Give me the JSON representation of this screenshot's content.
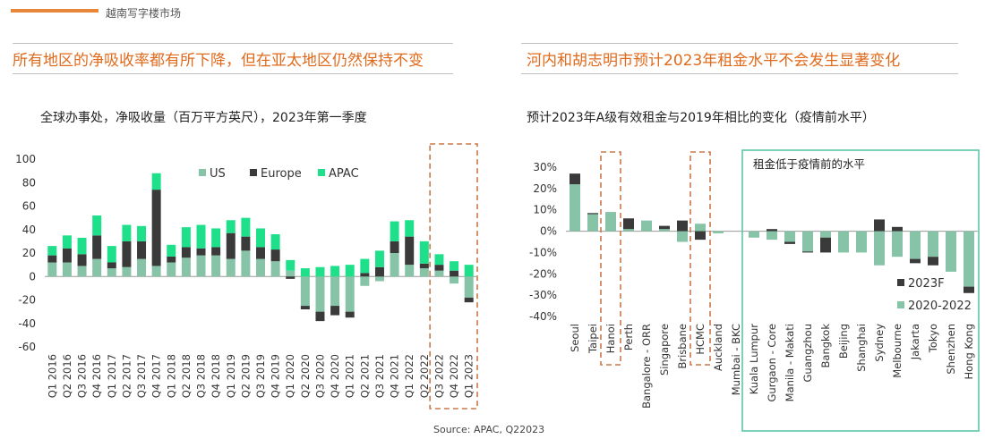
{
  "header": {
    "brand": "越南写字楼市场"
  },
  "colors": {
    "us": "#86C3A7",
    "europe": "#3A3A3A",
    "apac": "#1FE08A",
    "rent_2020": "#86C3A7",
    "rent_2023": "#3A3A3A",
    "title": "#E06A1C",
    "highlight": "#C9784A",
    "box": "#5BC6A8"
  },
  "source": "Source: APAC, Q22023",
  "chart_data": [
    {
      "type": "bar",
      "stacked": true,
      "panel_title": "所有地区的净吸收率都有所下降，但在亚太地区仍然保持不变",
      "title": "全球办事处，净吸收量（百万平方英尺），2023年第一季度",
      "categories": [
        "Q1 2016",
        "Q2 2016",
        "Q3 2016",
        "Q4 2016",
        "Q1 2017",
        "Q2 2017",
        "Q3 2017",
        "Q4 2017",
        "Q1 2018",
        "Q2 2018",
        "Q3 2018",
        "Q4 2018",
        "Q1 2019",
        "Q2 2019",
        "Q3 2019",
        "Q4 2019",
        "Q1 2020",
        "Q2 2020",
        "Q3 2020",
        "Q4 2020",
        "Q1 2021",
        "Q2 2021",
        "Q3 2021",
        "Q4 2021",
        "Q1 2022",
        "Q2 2022",
        "Q3 2022",
        "Q4 2022",
        "Q1 2023"
      ],
      "series": [
        {
          "name": "US",
          "values": [
            12,
            12,
            9,
            15,
            7,
            8,
            15,
            9,
            12,
            16,
            18,
            18,
            15,
            22,
            15,
            13,
            5,
            -25,
            -30,
            -25,
            -30,
            -8,
            -4,
            20,
            10,
            7,
            5,
            -6,
            -18
          ]
        },
        {
          "name": "Europe",
          "values": [
            6,
            12,
            10,
            20,
            5,
            22,
            15,
            65,
            5,
            9,
            6,
            7,
            22,
            12,
            10,
            10,
            -2,
            -3,
            -8,
            -8,
            -5,
            3,
            8,
            10,
            24,
            4,
            5,
            5,
            -4
          ]
        },
        {
          "name": "APAC",
          "values": [
            8,
            11,
            14,
            17,
            14,
            14,
            13,
            14,
            10,
            17,
            20,
            16,
            11,
            16,
            16,
            13,
            9,
            7,
            8,
            9,
            10,
            12,
            14,
            17,
            14,
            19,
            9,
            8,
            10
          ]
        }
      ],
      "yticks": [
        100,
        80,
        60,
        40,
        20,
        0,
        -20,
        -40,
        -60
      ],
      "ylim": [
        -60,
        100
      ],
      "legend": [
        "US",
        "Europe",
        "APAC"
      ],
      "legend_position": "top"
    },
    {
      "type": "bar",
      "panel_title": "河内和胡志明市预计2023年租金水平不会发生显著变化",
      "title": "预计2023年A级有效租金与2019年相比的变化（疫情前水平）",
      "box_label": "租金低于疫情前的水平",
      "categories": [
        "Seoul",
        "Taipei",
        "Hanoi",
        "Perth",
        "Bangalore - ORR",
        "Singapore",
        "Brisbane",
        "HCMC",
        "Auckland",
        "Mumbai - BKC",
        "Kuala Lumpur",
        "Gurgaon - Core",
        "Manila - Makati",
        "Guangzhou",
        "Bangkok",
        "Beijing",
        "Shanghai",
        "Sydney",
        "Melbourne",
        "Jakarta",
        "Tokyo",
        "Shenzhen",
        "Hong Kong"
      ],
      "series": [
        {
          "name": "2020-2022",
          "values": [
            22,
            8,
            9,
            1,
            5,
            1,
            -5,
            3.5,
            -1,
            0,
            -3,
            -4,
            -5,
            -9.5,
            -3,
            -10,
            -10,
            -16,
            -12,
            -13,
            -12,
            -19,
            -26
          ]
        },
        {
          "name": "2023F",
          "values": [
            5,
            0.5,
            0,
            5,
            0,
            1.5,
            5,
            -4,
            0,
            0,
            0,
            1,
            -1,
            -0.5,
            -7,
            0,
            0,
            5.5,
            2,
            -2,
            -4,
            0,
            -3
          ]
        }
      ],
      "yticks": [
        "30%",
        "20%",
        "10%",
        "0%",
        "-10%",
        "-20%",
        "-30%",
        "-40%"
      ],
      "ylim": [
        -40,
        30
      ],
      "legend": [
        "2023F",
        "2020-2022"
      ],
      "legend_position": "bottom-right"
    }
  ]
}
